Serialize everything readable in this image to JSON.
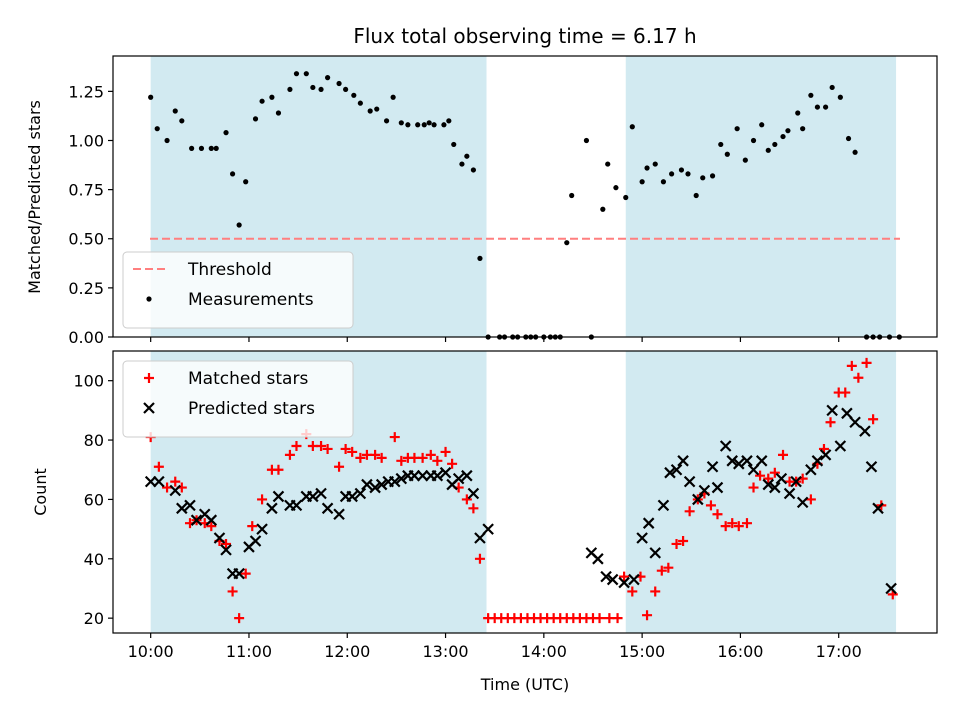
{
  "figure": {
    "title": "Flux total observing time = 6.17 h",
    "xlabel": "Time (UTC)"
  },
  "colors": {
    "observing_band": "#add8e6",
    "threshold": "#ff7f7f",
    "measurements": "#000000",
    "matched": "#ff0000",
    "predicted": "#000000"
  },
  "chart_data": [
    {
      "type": "scatter",
      "ylabel": "Matched/Predicted stars",
      "xlim": [
        "09:37",
        "18:00"
      ],
      "ylim": [
        0,
        1.43
      ],
      "xticks": [
        "10:00",
        "11:00",
        "12:00",
        "13:00",
        "14:00",
        "15:00",
        "16:00",
        "17:00"
      ],
      "yticks": [
        "0.00",
        "0.25",
        "0.50",
        "0.75",
        "1.00",
        "1.25"
      ],
      "legend_position": "lower-left",
      "grid": false,
      "observing_bands": [
        [
          "10:00",
          "13:25"
        ],
        [
          "14:50",
          "17:35"
        ]
      ],
      "threshold": {
        "name": "Threshold",
        "value": 0.5,
        "style": "dashed"
      },
      "series": [
        {
          "name": "Measurements",
          "x": [
            "10:00",
            "10:04",
            "10:10",
            "10:15",
            "10:19",
            "10:25",
            "10:31",
            "10:37",
            "10:40",
            "10:46",
            "10:50",
            "10:54",
            "10:58",
            "11:04",
            "11:08",
            "11:14",
            "11:18",
            "11:25",
            "11:29",
            "11:35",
            "11:39",
            "11:44",
            "11:48",
            "11:55",
            "11:59",
            "12:04",
            "12:08",
            "12:14",
            "12:18",
            "12:24",
            "12:28",
            "12:33",
            "12:37",
            "12:43",
            "12:47",
            "12:50",
            "12:53",
            "12:59",
            "13:02",
            "13:05",
            "13:10",
            "13:13",
            "13:17",
            "13:21",
            "13:26",
            "13:33",
            "13:36",
            "13:41",
            "13:44",
            "13:49",
            "13:52",
            "13:55",
            "14:00",
            "14:04",
            "14:07",
            "14:10",
            "14:14",
            "14:17",
            "14:26",
            "14:29",
            "14:36",
            "14:39",
            "14:44",
            "14:50",
            "14:54",
            "15:00",
            "15:03",
            "15:08",
            "15:13",
            "15:18",
            "15:24",
            "15:28",
            "15:33",
            "15:37",
            "15:43",
            "15:48",
            "15:52",
            "15:58",
            "16:03",
            "16:08",
            "16:13",
            "16:17",
            "16:21",
            "16:26",
            "16:29",
            "16:35",
            "16:38",
            "16:43",
            "16:47",
            "16:52",
            "16:56",
            "17:01",
            "17:06",
            "17:10",
            "17:17",
            "17:21",
            "17:25",
            "17:31",
            "17:37"
          ],
          "y": [
            1.22,
            1.06,
            1.0,
            1.15,
            1.1,
            0.96,
            0.96,
            0.96,
            0.96,
            1.04,
            0.83,
            0.57,
            0.79,
            1.11,
            1.2,
            1.22,
            1.14,
            1.26,
            1.34,
            1.34,
            1.27,
            1.26,
            1.32,
            1.29,
            1.26,
            1.23,
            1.19,
            1.15,
            1.16,
            1.1,
            1.22,
            1.09,
            1.08,
            1.08,
            1.08,
            1.09,
            1.08,
            1.08,
            1.1,
            0.98,
            0.88,
            0.92,
            0.85,
            0.4,
            0.0,
            0.0,
            0.0,
            0.0,
            0.0,
            0.0,
            0.0,
            0.0,
            0.0,
            0.0,
            0.0,
            0.0,
            0.48,
            0.72,
            1.0,
            0.0,
            0.65,
            0.88,
            0.76,
            0.71,
            1.07,
            0.79,
            0.86,
            0.88,
            0.79,
            0.83,
            0.85,
            0.83,
            0.72,
            0.81,
            0.82,
            0.98,
            0.93,
            1.06,
            0.9,
            1.0,
            1.08,
            0.95,
            0.98,
            1.02,
            1.05,
            1.14,
            1.06,
            1.23,
            1.17,
            1.17,
            1.27,
            1.22,
            1.01,
            0.94,
            0.0,
            0.0,
            0.0,
            0.0,
            0.0
          ]
        }
      ]
    },
    {
      "type": "scatter",
      "ylabel": "Count",
      "xlim": [
        "09:37",
        "18:00"
      ],
      "ylim": [
        15,
        110
      ],
      "xticks": [
        "10:00",
        "11:00",
        "12:00",
        "13:00",
        "14:00",
        "15:00",
        "16:00",
        "17:00"
      ],
      "yticks": [
        "20",
        "40",
        "60",
        "80",
        "100"
      ],
      "legend_position": "upper-left",
      "grid": false,
      "observing_bands": [
        [
          "10:00",
          "13:25"
        ],
        [
          "14:50",
          "17:35"
        ]
      ],
      "series": [
        {
          "name": "Matched stars",
          "marker": "plus",
          "x": [
            "10:00",
            "10:05",
            "10:10",
            "10:15",
            "10:19",
            "10:24",
            "10:28",
            "10:33",
            "10:37",
            "10:42",
            "10:46",
            "10:50",
            "10:54",
            "10:58",
            "11:02",
            "11:08",
            "11:14",
            "11:18",
            "11:25",
            "11:29",
            "11:35",
            "11:39",
            "11:44",
            "11:48",
            "11:55",
            "11:59",
            "12:03",
            "12:08",
            "12:12",
            "12:17",
            "12:21",
            "12:29",
            "12:33",
            "12:37",
            "12:41",
            "12:46",
            "12:51",
            "12:55",
            "13:00",
            "13:04",
            "13:08",
            "13:13",
            "13:17",
            "13:21",
            "13:26",
            "13:30",
            "13:34",
            "13:38",
            "13:42",
            "13:46",
            "13:50",
            "13:54",
            "13:58",
            "14:02",
            "14:06",
            "14:10",
            "14:14",
            "14:18",
            "14:22",
            "14:26",
            "14:30",
            "14:34",
            "14:40",
            "14:45",
            "14:49",
            "14:54",
            "14:59",
            "15:03",
            "15:08",
            "15:12",
            "15:16",
            "15:21",
            "15:25",
            "15:29",
            "15:34",
            "15:38",
            "15:42",
            "15:46",
            "15:51",
            "15:55",
            "15:59",
            "16:04",
            "16:08",
            "16:12",
            "16:17",
            "16:21",
            "16:26",
            "16:30",
            "16:34",
            "16:38",
            "16:43",
            "16:47",
            "16:51",
            "16:55",
            "17:00",
            "17:04",
            "17:08",
            "17:12",
            "17:17",
            "17:21",
            "17:26",
            "17:33"
          ],
          "y": [
            81,
            71,
            64,
            66,
            64,
            52,
            53,
            52,
            51,
            46,
            45,
            29,
            20,
            35,
            51,
            60,
            70,
            70,
            75,
            78,
            82,
            78,
            78,
            77,
            71,
            77,
            76,
            74,
            75,
            75,
            74,
            81,
            73,
            74,
            74,
            74,
            75,
            73,
            76,
            72,
            64,
            60,
            57,
            40,
            20,
            20,
            20,
            20,
            20,
            20,
            20,
            20,
            20,
            20,
            20,
            20,
            20,
            20,
            20,
            20,
            20,
            20,
            20,
            20,
            34,
            29,
            34,
            21,
            29,
            36,
            37,
            45,
            46,
            56,
            60,
            62,
            58,
            55,
            51,
            52,
            51,
            52,
            64,
            68,
            67,
            69,
            75,
            66,
            66,
            67,
            60,
            72,
            77,
            86,
            96,
            96,
            105,
            101,
            106,
            87,
            58,
            28
          ]
        },
        {
          "name": "Predicted stars",
          "marker": "x",
          "x": [
            "10:00",
            "10:05",
            "10:15",
            "10:19",
            "10:24",
            "10:28",
            "10:33",
            "10:37",
            "10:42",
            "10:46",
            "10:50",
            "10:54",
            "11:00",
            "11:04",
            "11:08",
            "11:14",
            "11:18",
            "11:25",
            "11:29",
            "11:35",
            "11:39",
            "11:44",
            "11:48",
            "11:55",
            "11:59",
            "12:03",
            "12:08",
            "12:12",
            "12:17",
            "12:21",
            "12:25",
            "12:29",
            "12:33",
            "12:37",
            "12:41",
            "12:46",
            "12:51",
            "12:55",
            "13:00",
            "13:04",
            "13:08",
            "13:13",
            "13:17",
            "13:21",
            "13:26",
            "14:29",
            "14:33",
            "14:38",
            "14:42",
            "14:49",
            "14:55",
            "15:00",
            "15:04",
            "15:08",
            "15:13",
            "15:17",
            "15:21",
            "15:25",
            "15:29",
            "15:34",
            "15:38",
            "15:43",
            "15:46",
            "15:51",
            "15:55",
            "15:59",
            "16:04",
            "16:08",
            "16:13",
            "16:17",
            "16:21",
            "16:25",
            "16:30",
            "16:34",
            "16:38",
            "16:43",
            "16:47",
            "16:52",
            "16:56",
            "17:01",
            "17:05",
            "17:10",
            "17:16",
            "17:20",
            "17:24",
            "17:32"
          ],
          "y": [
            66,
            66,
            63,
            57,
            58,
            53,
            55,
            53,
            47,
            43,
            35,
            35,
            44,
            46,
            50,
            57,
            61,
            58,
            58,
            61,
            61,
            62,
            57,
            55,
            61,
            61,
            62,
            65,
            64,
            65,
            66,
            66,
            67,
            68,
            68,
            68,
            68,
            68,
            69,
            65,
            67,
            68,
            62,
            47,
            50,
            42,
            40,
            34,
            33,
            32,
            33,
            47,
            52,
            42,
            58,
            69,
            70,
            73,
            66,
            60,
            63,
            71,
            64,
            78,
            73,
            72,
            73,
            70,
            73,
            65,
            64,
            67,
            62,
            66,
            59,
            70,
            73,
            75,
            90,
            78,
            89,
            86,
            83,
            71,
            57,
            30
          ]
        }
      ]
    }
  ]
}
